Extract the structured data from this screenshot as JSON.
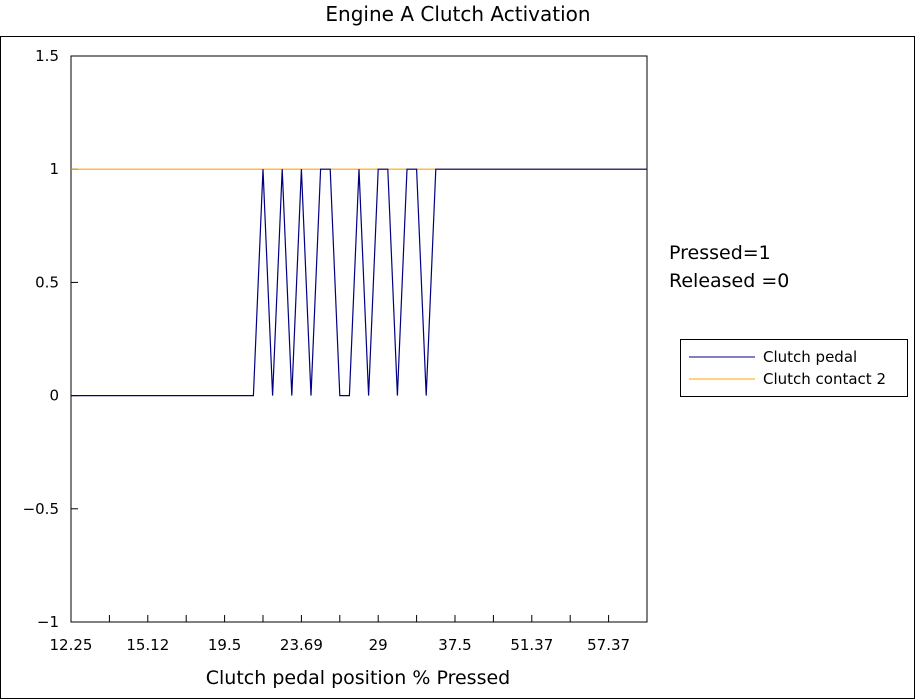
{
  "chart_data": {
    "type": "line",
    "title": "Engine A Clutch Activation",
    "xlabel": "Clutch pedal position % Pressed",
    "ylabel": "",
    "ylim": [
      -1,
      1.5
    ],
    "yticks": [
      1.5,
      1,
      0.5,
      0,
      -0.5,
      -1
    ],
    "ytick_labels": [
      "1.5",
      "1",
      "0.5",
      "0",
      "−0.5",
      "−1"
    ],
    "xtick_labels": [
      "12.25",
      "15.12",
      "19.5",
      "23.69",
      "29",
      "37.5",
      "51.37",
      "57.37"
    ],
    "x_index": [
      0,
      1,
      2,
      3,
      4,
      5,
      6,
      7,
      8,
      9,
      10,
      11,
      12,
      13,
      14,
      15,
      16,
      17,
      18,
      19,
      20,
      21,
      22,
      23,
      24,
      25,
      26,
      27,
      28,
      29,
      30,
      31,
      32,
      33,
      34,
      35,
      36,
      37,
      38,
      39,
      40,
      41,
      42,
      43,
      44,
      45,
      46,
      47,
      48,
      49,
      50,
      51,
      52,
      53,
      54,
      55,
      56,
      57,
      58,
      59,
      60
    ],
    "x_index_range": [
      0,
      60
    ],
    "xtick_index": [
      0,
      8,
      16,
      24,
      32,
      40,
      48,
      56
    ],
    "series": [
      {
        "name": "Clutch pedal",
        "color": "#000080",
        "values": [
          0,
          0,
          0,
          0,
          0,
          0,
          0,
          0,
          0,
          0,
          0,
          0,
          0,
          0,
          0,
          0,
          0,
          0,
          0,
          0,
          1,
          0,
          1,
          0,
          1,
          0,
          1,
          1,
          0,
          0,
          1,
          0,
          1,
          1,
          0,
          1,
          1,
          0,
          1,
          1,
          1,
          1,
          1,
          1,
          1,
          1,
          1,
          1,
          1,
          1,
          1,
          1,
          1,
          1,
          1,
          1,
          1,
          1,
          1,
          1,
          1
        ]
      },
      {
        "name": "Clutch contact 2",
        "color": "#ffa500",
        "values": [
          1,
          1,
          1,
          1,
          1,
          1,
          1,
          1,
          1,
          1,
          1,
          1,
          1,
          1,
          1,
          1,
          1,
          1,
          1,
          1,
          1,
          1,
          1,
          1,
          1,
          1,
          1,
          1,
          1,
          1,
          1,
          1,
          1,
          1,
          1,
          1,
          1,
          1,
          1,
          1,
          1,
          1,
          1,
          1,
          1,
          1,
          1,
          1,
          1,
          1,
          1,
          1,
          1,
          1,
          1,
          1,
          1,
          1,
          1,
          1,
          1
        ]
      }
    ],
    "annotations": [
      "Pressed=1",
      "Released =0"
    ],
    "legend_position": "right",
    "grid": false
  }
}
